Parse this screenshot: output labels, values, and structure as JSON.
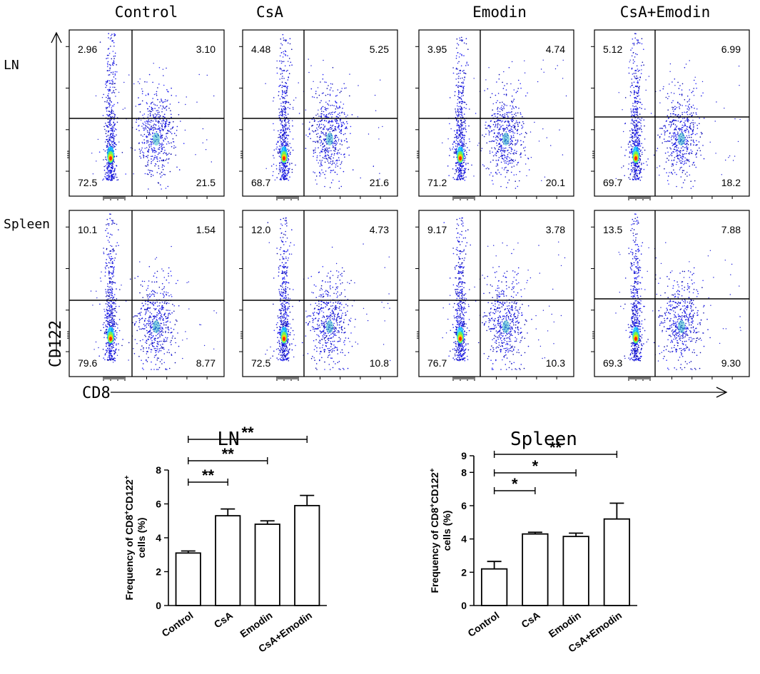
{
  "flow": {
    "x_axis_label": "CD8",
    "y_axis_label": "CD122",
    "columns": [
      "Control",
      "CsA",
      "Emodin",
      "CsA+Emodin"
    ],
    "rows": [
      {
        "label": "LN",
        "panels": [
          {
            "UL": "2.96",
            "UR": "3.10",
            "LL": "72.5",
            "LR": "21.5"
          },
          {
            "UL": "4.48",
            "UR": "5.25",
            "LL": "68.7",
            "LR": "21.6"
          },
          {
            "UL": "3.95",
            "UR": "4.74",
            "LL": "71.2",
            "LR": "20.1"
          },
          {
            "UL": "5.12",
            "UR": "6.99",
            "LL": "69.7",
            "LR": "18.2"
          }
        ]
      },
      {
        "label": "Spleen",
        "panels": [
          {
            "UL": "10.1",
            "UR": "1.54",
            "LL": "79.6",
            "LR": "8.77"
          },
          {
            "UL": "12.0",
            "UR": "4.73",
            "LL": "72.5",
            "LR": "10.8"
          },
          {
            "UL": "9.17",
            "UR": "3.78",
            "LL": "76.7",
            "LR": "10.3"
          },
          {
            "UL": "13.5",
            "UR": "7.88",
            "LL": "69.3",
            "LR": "9.30"
          }
        ]
      }
    ]
  },
  "chart_data": [
    {
      "type": "bar",
      "title": "LN",
      "categories": [
        "Control",
        "CsA",
        "Emodin",
        "CsA+Emodin"
      ],
      "values": [
        3.1,
        5.3,
        4.8,
        5.9
      ],
      "errors": [
        0.12,
        0.4,
        0.2,
        0.6
      ],
      "ylabel_line1": "Frequency of CD8",
      "ylabel_sup1": "+",
      "ylabel_mid": "CD122",
      "ylabel_sup2": "+",
      "ylabel_line2": "cells (%)",
      "ylim": [
        0,
        8
      ],
      "yticks": [
        "0",
        "2",
        "4",
        "6",
        "8"
      ],
      "significance": [
        {
          "from": 0,
          "to": 1,
          "label": "**"
        },
        {
          "from": 0,
          "to": 2,
          "label": "**"
        },
        {
          "from": 0,
          "to": 3,
          "label": "**"
        }
      ]
    },
    {
      "type": "bar",
      "title": "Spleen",
      "categories": [
        "Control",
        "CsA",
        "Emodin",
        "CsA+Emodin"
      ],
      "values": [
        2.2,
        4.3,
        4.15,
        5.2
      ],
      "errors": [
        0.45,
        0.1,
        0.2,
        0.95
      ],
      "ylabel_line1": "Frequency of CD8",
      "ylabel_sup1": "+",
      "ylabel_mid": "CD122",
      "ylabel_sup2": "+",
      "ylabel_line2": "cells (%)",
      "ylim": [
        0,
        9
      ],
      "yticks": [
        "0",
        "2",
        "4",
        "6",
        "8",
        "9"
      ],
      "significance": [
        {
          "from": 0,
          "to": 1,
          "label": "*"
        },
        {
          "from": 0,
          "to": 2,
          "label": "*"
        },
        {
          "from": 0,
          "to": 3,
          "label": "**"
        }
      ]
    }
  ]
}
